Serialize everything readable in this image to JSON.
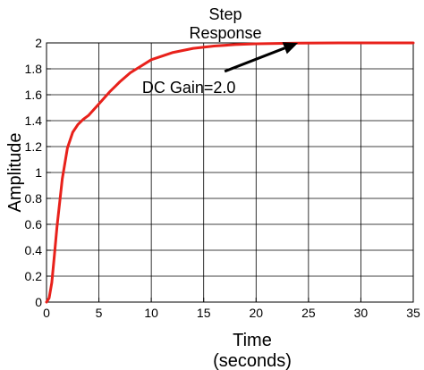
{
  "chart_data": {
    "type": "line",
    "title": "Step Response",
    "title_lines": [
      "Step",
      "Response"
    ],
    "xlabel": "Time (seconds)",
    "xlabel_lines": [
      "Time",
      "(seconds)"
    ],
    "ylabel": "Amplitude",
    "xlim": [
      0,
      35
    ],
    "ylim": [
      0,
      2
    ],
    "xticks": [
      0,
      5,
      10,
      15,
      20,
      25,
      30,
      35
    ],
    "yticks": [
      0,
      0.2,
      0.4,
      0.6,
      0.8,
      1,
      1.2,
      1.4,
      1.6,
      1.8,
      2
    ],
    "ytick_labels": [
      "0",
      "0.2",
      "0.4",
      "0.6",
      "0.8",
      "1",
      "1.2",
      "1.4",
      "1.6",
      "1.8",
      "2"
    ],
    "grid": true,
    "series": [
      {
        "color": "#e8211b",
        "x": [
          0,
          0.25,
          0.5,
          0.75,
          1.0,
          1.5,
          2.0,
          2.5,
          3.0,
          3.5,
          4.0,
          5.0,
          6.0,
          7.0,
          8.0,
          9.0,
          10.0,
          12.0,
          14.0,
          16.0,
          18.0,
          20.0,
          22.0,
          24.0,
          26.0,
          28.0,
          30.0,
          32.0,
          35.0
        ],
        "y": [
          0,
          0.03,
          0.15,
          0.36,
          0.58,
          0.95,
          1.19,
          1.31,
          1.37,
          1.41,
          1.44,
          1.53,
          1.62,
          1.7,
          1.77,
          1.82,
          1.87,
          1.925,
          1.958,
          1.976,
          1.987,
          1.993,
          1.996,
          1.998,
          1.999,
          2.0,
          2.0,
          2.0,
          2.0
        ]
      }
    ],
    "reference_line": {
      "y": 2,
      "style": "dotted",
      "color": "#000000"
    },
    "annotation": {
      "text": "DC Gain=2.0",
      "arrow_to": {
        "x": 24,
        "y": 2.0
      },
      "arrow_from": {
        "x": 17,
        "y": 1.78
      }
    }
  }
}
